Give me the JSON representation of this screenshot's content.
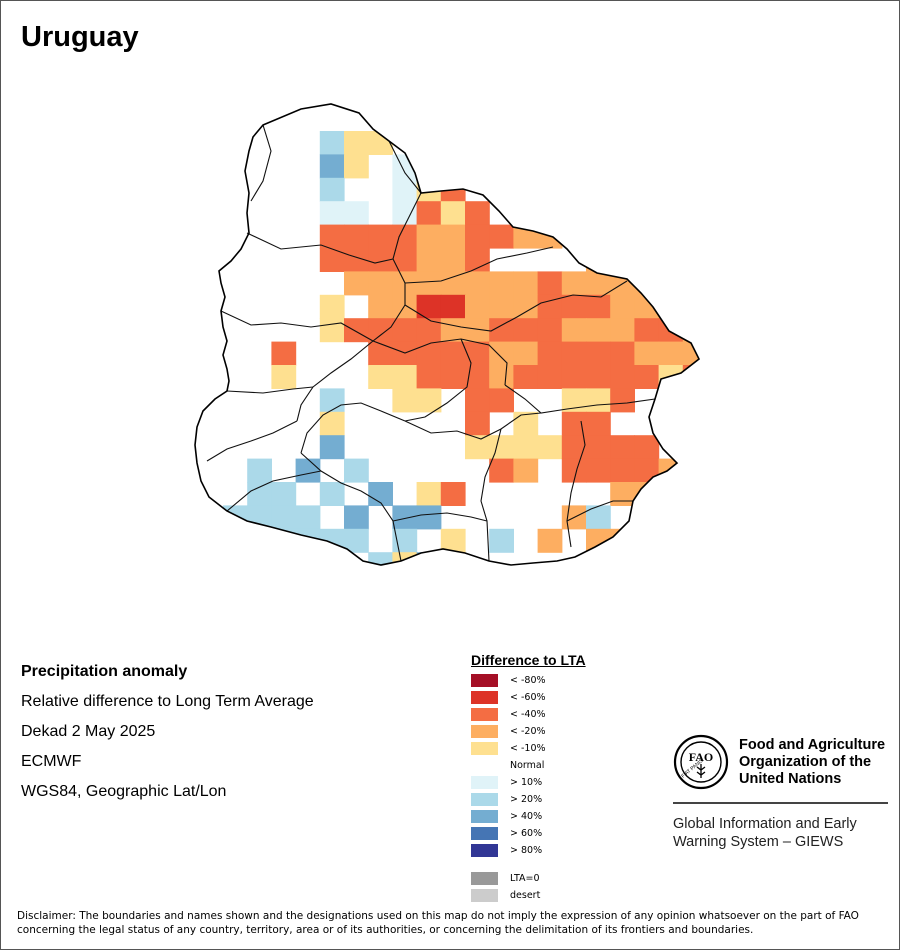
{
  "map": {
    "title": "Uruguay",
    "info": {
      "heading": "Precipitation anomaly",
      "line1": "Relative difference to Long Term Average",
      "line2": "Dekad 2 May 2025",
      "line3": "ECMWF",
      "line4": "WGS84, Geographic Lat/Lon"
    },
    "legend": {
      "title": "Difference to LTA",
      "classes": [
        {
          "label": "< -80%",
          "color": "#a50f26"
        },
        {
          "label": "< -60%",
          "color": "#dd3327"
        },
        {
          "label": "< -40%",
          "color": "#f46d43"
        },
        {
          "label": "< -20%",
          "color": "#fdae61"
        },
        {
          "label": "< -10%",
          "color": "#fee090"
        },
        {
          "label": "Normal",
          "color": "#ffffff"
        },
        {
          "label": "> 10%",
          "color": "#e0f3f8"
        },
        {
          "label": "> 20%",
          "color": "#abd9e9"
        },
        {
          "label": "> 40%",
          "color": "#74add1"
        },
        {
          "label": "> 60%",
          "color": "#4575b4"
        },
        {
          "label": "> 80%",
          "color": "#313695"
        }
      ],
      "extra": [
        {
          "label": "LTA=0",
          "color": "#999999"
        },
        {
          "label": "desert",
          "color": "#cccccc"
        }
      ]
    },
    "grid_rows": [
      "....7TT.....",
      "....8T.66T..........",
      "....7..6T3.........",
      "....66.63T3...3......",
      "....3333223322.........",
      "....3333223....22223...",
      ".....22222222322222.",
      "....T.22112223332223...",
      "....T333322333222332...",
      "..3...3333322333322232",
      "..T...TT3332333333T32T2..",
      "....7..TT.33..TT3..2221.2",
      "....T.....3.T.33..223..233",
      "....8.....TTTT3333.33....T",
      ".7.8.7.....32.333322.6.TT",
      ".77.7.8.T3......22TT....T",
      "7777.8.88.....27.........T",
      "..7777.7.T.7.2.223...22.2.",
      "..88..7T8........T12.22...T",
      "..8.........98.6.2333.32...",
      "..9AAAA898.66..2.3332.22..",
      "..9........997.67766.1.11.",
      "...........8...7777...222",
      "...................TT.TT",
      "......................T"
    ],
    "legend_footer_note": "",
    "fao": {
      "name_line1": "Food and Agriculture",
      "name_line2": "Organization of the",
      "name_line3": "United Nations",
      "logo_text": "FAO",
      "motto": "FIAT PANIS",
      "giews_line1": "Global Information and Early",
      "giews_line2": "Warning System – GIEWS"
    },
    "disclaimer_line1": "Disclaimer: The boundaries and names shown and the designations used on this map do not imply the expression of any opinion whatsoever on the part of FAO",
    "disclaimer_line2": "concerning the legal status of any country, territory, area or of its authorities, or concerning the delimitation of its frontiers and boundaries."
  }
}
